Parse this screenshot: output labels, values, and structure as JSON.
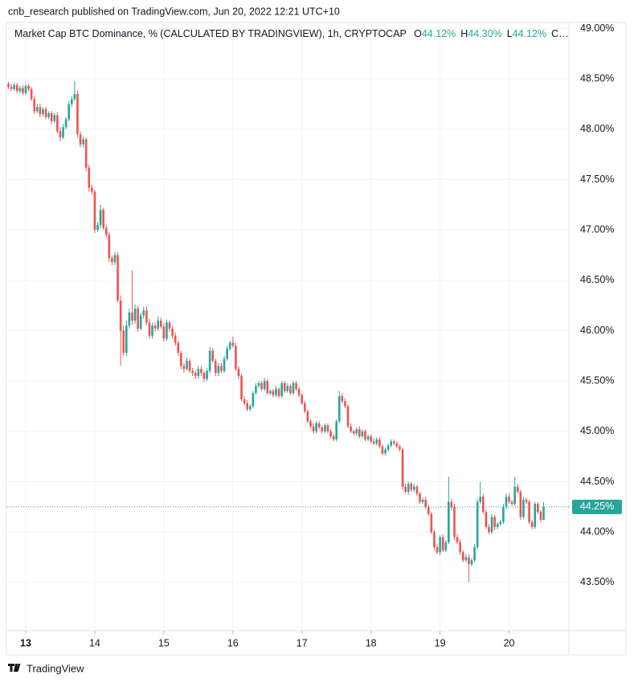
{
  "header": "cnb_research published on TradingView.com, Jun 20, 2022 12:21 UTC+10",
  "footer": "TradingView",
  "chart_data": {
    "type": "candlestick",
    "title": "Market Cap BTC Dominance, % (CALCULATED BY TRADINGVIEW), 1h, CRYPTOCAP",
    "ohlc_legend": [
      {
        "label": "O",
        "value": "44.12%"
      },
      {
        "label": "H",
        "value": "44.30%"
      },
      {
        "label": "L",
        "value": "44.12%"
      },
      {
        "label": "C…"
      }
    ],
    "up_color": "#26a69a",
    "down_color": "#ef5350",
    "last_price": {
      "value": 44.25,
      "label": "44.25%"
    },
    "ylim": [
      43.02,
      49.06
    ],
    "yticks": [
      {
        "value": 43.5,
        "label": "43.50%"
      },
      {
        "value": 44,
        "label": "44.00%"
      },
      {
        "value": 44.5,
        "label": "44.50%"
      },
      {
        "value": 45,
        "label": "45.00%"
      },
      {
        "value": 45.5,
        "label": "45.50%"
      },
      {
        "value": 46,
        "label": "46.00%"
      },
      {
        "value": 46.5,
        "label": "46.50%"
      },
      {
        "value": 47,
        "label": "47.00%"
      },
      {
        "value": 47.5,
        "label": "47.50%"
      },
      {
        "value": 48,
        "label": "48.00%"
      },
      {
        "value": 48.5,
        "label": "48.50%"
      },
      {
        "value": 49,
        "label": "49.00%"
      }
    ],
    "xlim": [
      -0.7,
      194.8
    ],
    "xticks": [
      {
        "value": 6,
        "label": "13"
      },
      {
        "value": 30,
        "label": "14"
      },
      {
        "value": 54,
        "label": "15"
      },
      {
        "value": 78,
        "label": "16"
      },
      {
        "value": 102,
        "label": "17"
      },
      {
        "value": 126,
        "label": "18"
      },
      {
        "value": 150,
        "label": "19"
      },
      {
        "value": 174,
        "label": "20"
      }
    ],
    "grid": true,
    "open": [
      48.45,
      48.42,
      48.4,
      48.44,
      48.38,
      48.41,
      48.36,
      48.43,
      48.4,
      48.3,
      48.18,
      48.22,
      48.15,
      48.2,
      48.12,
      48.16,
      48.08,
      48.14,
      47.98,
      47.92,
      48.02,
      48.1,
      48.25,
      48.3,
      48.35,
      47.95,
      47.85,
      47.9,
      47.62,
      47.42,
      47.38,
      47.0,
      47.05,
      47.2,
      47.02,
      46.95,
      46.72,
      46.68,
      46.75,
      46.3,
      46.0,
      45.78,
      46.05,
      46.18,
      46.1,
      46.22,
      46.02,
      46.15,
      46.2,
      46.08,
      45.95,
      46.05,
      46.02,
      46.1,
      46.04,
      45.92,
      46.08,
      46.02,
      45.95,
      45.88,
      45.78,
      45.65,
      45.62,
      45.7,
      45.6,
      45.58,
      45.55,
      45.62,
      45.58,
      45.52,
      45.6,
      45.8,
      45.7,
      45.58,
      45.65,
      45.6,
      45.72,
      45.82,
      45.88,
      45.85,
      45.62,
      45.55,
      45.32,
      45.28,
      45.22,
      45.25,
      45.38,
      45.45,
      45.48,
      45.42,
      45.5,
      45.38,
      45.4,
      45.36,
      45.42,
      45.35,
      45.48,
      45.4,
      45.45,
      45.38,
      45.48,
      45.42,
      45.36,
      45.28,
      45.2,
      45.1,
      45.05,
      45.0,
      45.08,
      45.04,
      45.0,
      45.06,
      45.0,
      44.95,
      44.92,
      45.1,
      45.35,
      45.3,
      45.25,
      45.05,
      45.0,
      44.98,
      45.02,
      44.95,
      45.0,
      44.92,
      44.95,
      44.9,
      44.88,
      44.92,
      44.85,
      44.78,
      44.82,
      44.86,
      44.9,
      44.88,
      44.85,
      44.82,
      44.45,
      44.4,
      44.48,
      44.42,
      44.45,
      44.38,
      44.3,
      44.32,
      44.25,
      44.18,
      44.0,
      43.85,
      43.8,
      43.95,
      43.82,
      43.9,
      44.3,
      44.25,
      43.95,
      43.9,
      43.8,
      43.72,
      43.75,
      43.68,
      43.72,
      43.85,
      44.3,
      44.35,
      44.2,
      44.05,
      44.0,
      44.15,
      44.05,
      44.08,
      44.1,
      44.25,
      44.35,
      44.3,
      44.28,
      44.45,
      44.4,
      44.15,
      44.32,
      44.3,
      44.1,
      44.05,
      44.28,
      44.2,
      44.12
    ],
    "high": [
      48.47,
      48.45,
      48.46,
      48.46,
      48.43,
      48.44,
      48.45,
      48.45,
      48.42,
      48.33,
      48.25,
      48.25,
      48.22,
      48.22,
      48.18,
      48.18,
      48.16,
      48.17,
      48.02,
      48.05,
      48.12,
      48.28,
      48.33,
      48.48,
      48.38,
      47.98,
      47.93,
      47.92,
      47.65,
      47.45,
      47.4,
      47.08,
      47.25,
      47.22,
      47.05,
      46.98,
      46.75,
      46.78,
      46.78,
      46.35,
      46.05,
      46.1,
      46.22,
      46.6,
      46.26,
      46.25,
      46.18,
      46.24,
      46.24,
      46.12,
      46.08,
      46.08,
      46.14,
      46.13,
      46.07,
      46.11,
      46.1,
      46.05,
      45.98,
      45.9,
      45.8,
      45.68,
      45.73,
      45.72,
      45.63,
      45.6,
      45.65,
      45.65,
      45.6,
      45.63,
      45.84,
      45.83,
      45.72,
      45.68,
      45.68,
      45.75,
      45.85,
      45.9,
      45.94,
      45.88,
      45.65,
      45.57,
      45.35,
      45.31,
      45.27,
      45.4,
      45.48,
      45.5,
      45.5,
      45.53,
      45.52,
      45.42,
      45.42,
      45.45,
      45.44,
      45.5,
      45.5,
      45.48,
      45.47,
      45.5,
      45.5,
      45.44,
      45.38,
      45.3,
      45.22,
      45.12,
      45.08,
      45.1,
      45.1,
      45.06,
      45.08,
      45.08,
      45.02,
      44.97,
      45.12,
      45.4,
      45.38,
      45.33,
      45.27,
      45.08,
      45.02,
      45.04,
      45.05,
      45.02,
      45.02,
      44.97,
      44.97,
      44.93,
      44.94,
      44.94,
      44.87,
      44.84,
      44.88,
      44.92,
      44.92,
      44.9,
      44.87,
      44.84,
      44.48,
      44.5,
      44.5,
      44.48,
      44.47,
      44.4,
      44.34,
      44.35,
      44.27,
      44.2,
      44.02,
      43.88,
      43.97,
      43.98,
      43.92,
      44.55,
      44.33,
      44.28,
      43.98,
      43.93,
      43.82,
      43.78,
      43.78,
      43.74,
      43.88,
      44.33,
      44.5,
      44.38,
      44.22,
      44.08,
      44.18,
      44.17,
      44.1,
      44.12,
      44.28,
      44.38,
      44.38,
      44.32,
      44.55,
      44.48,
      44.42,
      44.35,
      44.34,
      44.32,
      44.12,
      44.3,
      44.3,
      44.22,
      44.3
    ],
    "low": [
      48.4,
      48.38,
      48.38,
      48.36,
      48.36,
      48.34,
      48.34,
      48.38,
      48.28,
      48.15,
      48.16,
      48.12,
      48.13,
      48.1,
      48.1,
      48.05,
      48.06,
      47.96,
      47.88,
      47.9,
      48.0,
      48.08,
      48.22,
      48.28,
      47.92,
      47.82,
      47.82,
      47.58,
      47.38,
      47.35,
      46.97,
      46.98,
      47.02,
      47.0,
      46.92,
      46.68,
      46.65,
      46.65,
      46.28,
      45.65,
      45.75,
      45.75,
      46.02,
      46.06,
      46.07,
      45.99,
      46.0,
      46.12,
      46.05,
      45.92,
      45.92,
      45.99,
      46.0,
      46.02,
      45.89,
      45.9,
      45.99,
      45.92,
      45.85,
      45.75,
      45.62,
      45.58,
      45.6,
      45.58,
      45.55,
      45.52,
      45.52,
      45.55,
      45.49,
      45.5,
      45.58,
      45.68,
      45.55,
      45.55,
      45.58,
      45.58,
      45.7,
      45.8,
      45.83,
      45.6,
      45.52,
      45.3,
      45.26,
      45.2,
      45.2,
      45.23,
      45.36,
      45.43,
      45.4,
      45.4,
      45.36,
      45.36,
      45.34,
      45.34,
      45.33,
      45.33,
      45.38,
      45.38,
      45.36,
      45.36,
      45.4,
      45.34,
      45.26,
      45.18,
      45.08,
      45.03,
      44.98,
      44.98,
      45.02,
      44.98,
      44.98,
      44.98,
      44.93,
      44.9,
      44.9,
      45.08,
      45.28,
      45.23,
      45.03,
      44.98,
      44.96,
      44.96,
      44.93,
      44.93,
      44.9,
      44.9,
      44.88,
      44.86,
      44.86,
      44.83,
      44.76,
      44.76,
      44.8,
      44.84,
      44.86,
      44.83,
      44.8,
      44.42,
      44.38,
      44.37,
      44.4,
      44.4,
      44.36,
      44.28,
      44.28,
      44.23,
      44.16,
      43.98,
      43.82,
      43.78,
      43.77,
      43.8,
      43.8,
      43.88,
      44.22,
      43.92,
      43.88,
      43.77,
      43.7,
      43.7,
      43.5,
      43.66,
      43.7,
      43.83,
      44.28,
      44.18,
      44.03,
      43.98,
      43.98,
      44.02,
      44.03,
      44.06,
      44.08,
      44.23,
      44.28,
      44.26,
      44.26,
      44.38,
      44.12,
      44.13,
      44.28,
      44.08,
      44.03,
      44.03,
      44.18,
      44.1,
      44.12
    ],
    "close": [
      48.42,
      48.4,
      48.44,
      48.38,
      48.41,
      48.36,
      48.43,
      48.4,
      48.3,
      48.18,
      48.22,
      48.15,
      48.2,
      48.12,
      48.16,
      48.08,
      48.14,
      47.98,
      47.92,
      48.02,
      48.1,
      48.25,
      48.3,
      48.35,
      47.95,
      47.85,
      47.9,
      47.62,
      47.42,
      47.38,
      47.0,
      47.05,
      47.2,
      47.02,
      46.95,
      46.72,
      46.68,
      46.75,
      46.3,
      46.0,
      45.78,
      46.05,
      46.18,
      46.1,
      46.22,
      46.02,
      46.15,
      46.2,
      46.08,
      45.95,
      46.05,
      46.02,
      46.1,
      46.04,
      45.92,
      46.08,
      46.02,
      45.95,
      45.88,
      45.78,
      45.65,
      45.62,
      45.7,
      45.6,
      45.58,
      45.55,
      45.62,
      45.58,
      45.52,
      45.6,
      45.8,
      45.7,
      45.58,
      45.65,
      45.6,
      45.72,
      45.82,
      45.88,
      45.85,
      45.62,
      45.55,
      45.32,
      45.28,
      45.22,
      45.25,
      45.38,
      45.45,
      45.48,
      45.42,
      45.5,
      45.38,
      45.4,
      45.36,
      45.42,
      45.35,
      45.48,
      45.4,
      45.45,
      45.38,
      45.48,
      45.42,
      45.36,
      45.28,
      45.2,
      45.1,
      45.05,
      45.0,
      45.08,
      45.04,
      45.0,
      45.06,
      45.0,
      44.95,
      44.92,
      45.1,
      45.35,
      45.3,
      45.25,
      45.05,
      45.0,
      44.98,
      45.02,
      44.95,
      45.0,
      44.92,
      44.95,
      44.9,
      44.88,
      44.92,
      44.85,
      44.78,
      44.82,
      44.86,
      44.9,
      44.88,
      44.85,
      44.82,
      44.45,
      44.4,
      44.48,
      44.42,
      44.45,
      44.38,
      44.3,
      44.32,
      44.25,
      44.18,
      44.0,
      43.85,
      43.8,
      43.95,
      43.82,
      43.9,
      44.3,
      44.25,
      43.95,
      43.9,
      43.8,
      43.72,
      43.75,
      43.68,
      43.72,
      43.85,
      44.3,
      44.35,
      44.2,
      44.05,
      44.0,
      44.15,
      44.05,
      44.08,
      44.1,
      44.25,
      44.35,
      44.3,
      44.28,
      44.45,
      44.4,
      44.15,
      44.32,
      44.3,
      44.1,
      44.05,
      44.28,
      44.2,
      44.12,
      44.25
    ]
  }
}
